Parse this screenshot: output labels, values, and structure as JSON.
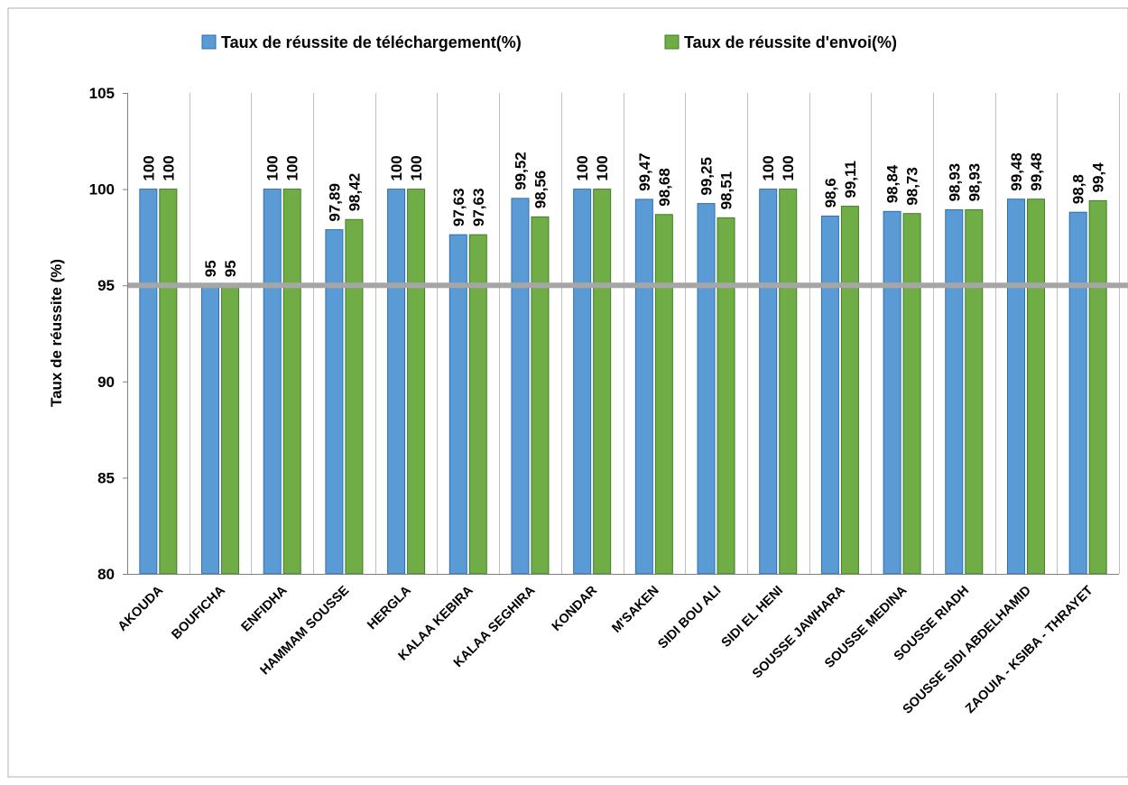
{
  "colors": {
    "series1_fill": "#5b9bd5",
    "series1_stroke": "#2e6db4",
    "series2_fill": "#70ad47",
    "series2_stroke": "#3f7f25",
    "threshold_line": "#a6a6a6",
    "grid": "#bfbfbf",
    "axis": "#7f7f7f",
    "border": "#b0b0b0"
  },
  "chart_data": {
    "type": "bar",
    "title": "",
    "xlabel": "",
    "ylabel": "Taux de réussite (%)",
    "ylim": [
      80,
      105
    ],
    "yticks": [
      "80",
      "85",
      "90",
      "95",
      "100",
      "105"
    ],
    "grid": "vertical category separators",
    "legend_position": "top",
    "reference_line": {
      "value": 95
    },
    "categories": [
      "AKOUDA",
      "BOUFICHA",
      "ENFIDHA",
      "HAMMAM SOUSSE",
      "HERGLA",
      "KALAA KEBIRA",
      "KALAA SEGHIRA",
      "KONDAR",
      "M'SAKEN",
      "SIDI BOU ALI",
      "SIDI EL HENI",
      "SOUSSE JAWHARA",
      "SOUSSE MEDINA",
      "SOUSSE RIADH",
      "SOUSSE SIDI ABDELHAMID",
      "ZAOUIA - KSIBA - THRAYET"
    ],
    "series": [
      {
        "name": "Taux de réussite de téléchargement(%)",
        "values": [
          100,
          95,
          100,
          97.89,
          100,
          97.63,
          99.52,
          100,
          99.47,
          99.25,
          100,
          98.6,
          98.84,
          98.93,
          99.48,
          98.8
        ],
        "labels": [
          "100",
          "95",
          "100",
          "97,89",
          "100",
          "97,63",
          "99,52",
          "100",
          "99,47",
          "99,25",
          "100",
          "98,6",
          "98,84",
          "98,93",
          "99,48",
          "98,8"
        ]
      },
      {
        "name": "Taux de réussite d'envoi(%)",
        "values": [
          100,
          95,
          100,
          98.42,
          100,
          97.63,
          98.56,
          100,
          98.68,
          98.51,
          100,
          99.11,
          98.73,
          98.93,
          99.48,
          99.4
        ],
        "labels": [
          "100",
          "95",
          "100",
          "98,42",
          "100",
          "97,63",
          "98,56",
          "100",
          "98,68",
          "98,51",
          "100",
          "99,11",
          "98,73",
          "98,93",
          "99,48",
          "99,4"
        ]
      }
    ]
  }
}
